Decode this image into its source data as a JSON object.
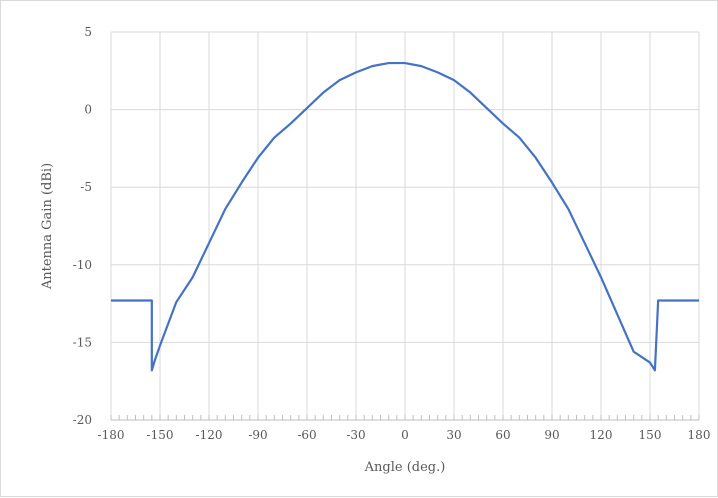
{
  "chart_data": {
    "type": "line",
    "title": "",
    "xlabel": "Angle (deg.)",
    "ylabel": "Antenna Gain (dBi)",
    "xlim": [
      -180,
      180
    ],
    "ylim": [
      -20,
      5
    ],
    "x_ticks": [
      -180,
      -150,
      -120,
      -90,
      -60,
      -30,
      0,
      30,
      60,
      90,
      120,
      150,
      180
    ],
    "y_ticks": [
      -20,
      -15,
      -10,
      -5,
      0,
      5
    ],
    "x_tick_labels": [
      "-180",
      "-150",
      "-120",
      "-90",
      "-60",
      "-30",
      "0",
      "30",
      "60",
      "90",
      "120",
      "150",
      "180"
    ],
    "y_tick_labels": [
      "-20",
      "-15",
      "-10",
      "-5",
      "0",
      "5"
    ],
    "grid": true,
    "legend": "none",
    "series": [
      {
        "color": "#4472c4",
        "x": [
          -180,
          -155,
          -155,
          -153,
          -150,
          -140,
          -130,
          -120,
          -110,
          -100,
          -90,
          -80,
          -70,
          -60,
          -50,
          -40,
          -30,
          -20,
          -10,
          0,
          10,
          20,
          30,
          40,
          50,
          60,
          70,
          80,
          90,
          100,
          110,
          120,
          130,
          140,
          150,
          153,
          155,
          155,
          180
        ],
        "y": [
          -12.3,
          -12.3,
          -16.8,
          -16.1,
          -15.2,
          -12.4,
          -10.8,
          -8.6,
          -6.4,
          -4.7,
          -3.1,
          -1.8,
          -0.9,
          0.1,
          1.1,
          1.9,
          2.4,
          2.8,
          3.0,
          3.0,
          2.8,
          2.4,
          1.9,
          1.1,
          0.1,
          -0.9,
          -1.8,
          -3.1,
          -4.7,
          -6.4,
          -8.6,
          -10.8,
          -13.2,
          -15.6,
          -16.3,
          -16.8,
          -12.3,
          -12.3,
          -12.3
        ]
      }
    ]
  }
}
